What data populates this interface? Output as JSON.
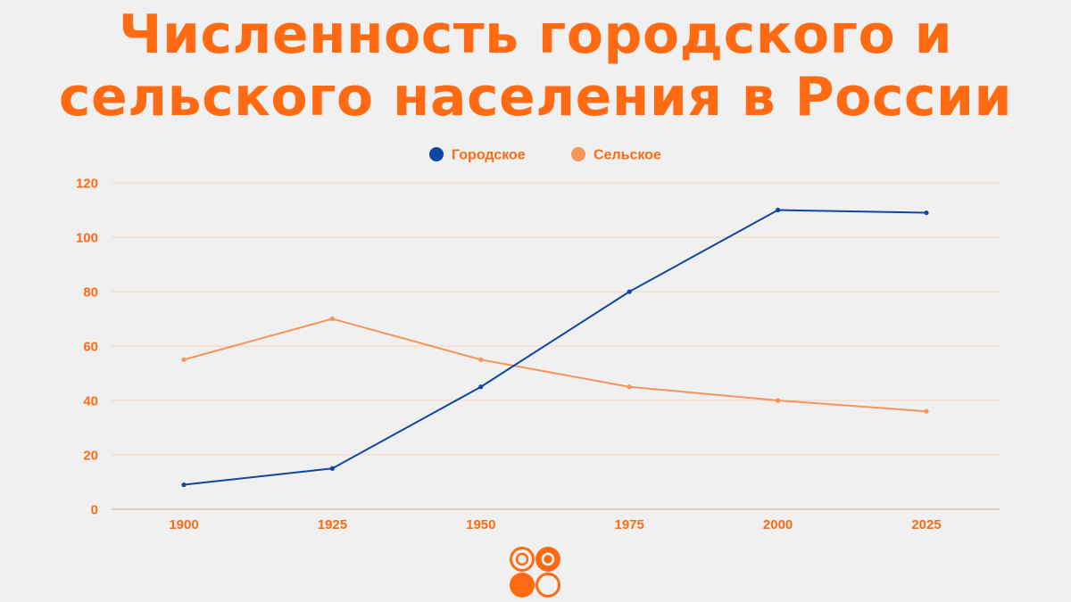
{
  "title": {
    "line1": "Численность городского и",
    "line2": "сельского населения в России"
  },
  "colors": {
    "accent": "#ff6a13",
    "urban": "#0d47a1",
    "rural": "#f5955a",
    "grid": "#f6d3bf",
    "background": "#f1f0f0"
  },
  "chart_data": {
    "type": "line",
    "title": "Численность городского и сельского населения в России",
    "x": [
      "1900",
      "1925",
      "1950",
      "1975",
      "2000",
      "2025"
    ],
    "series": [
      {
        "name": "Городское",
        "values": [
          9,
          15,
          45,
          80,
          110,
          109
        ]
      },
      {
        "name": "Сельское",
        "values": [
          55,
          70,
          55,
          45,
          40,
          36
        ]
      }
    ],
    "ylim": [
      0,
      120
    ],
    "yticks": [
      "0",
      "20",
      "40",
      "60",
      "80",
      "100",
      "120"
    ],
    "grid": true,
    "legend_position": "top-center",
    "xlabel": "",
    "ylabel": ""
  },
  "logo": {
    "icon": "four-circles-logo-icon"
  }
}
